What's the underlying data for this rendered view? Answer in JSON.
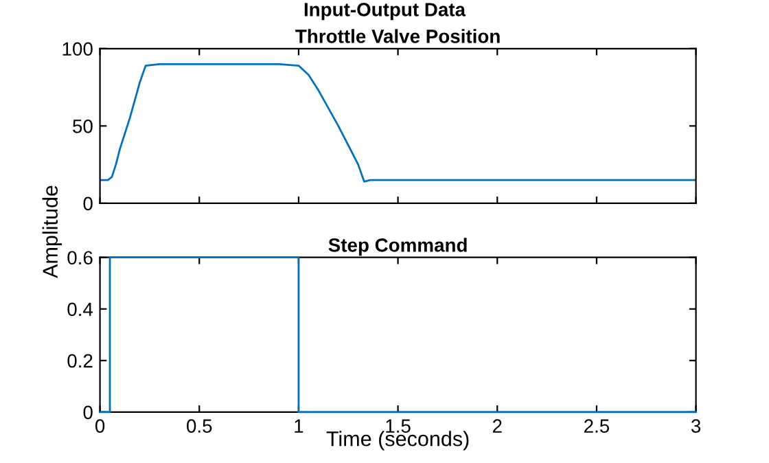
{
  "chart_data": [
    {
      "type": "line",
      "title": "Throttle Valve Position",
      "annotations": [
        "Input-Output Data"
      ],
      "ylabel": "Amplitude",
      "xlim": [
        0,
        3
      ],
      "xticks": [
        0,
        0.5,
        1,
        1.5,
        2,
        2.5,
        3
      ],
      "ylim": [
        0,
        100
      ],
      "yticks": [
        0,
        50,
        100
      ],
      "tick_labels": "y",
      "series": [
        {
          "color": "#0072bd",
          "x": [
            0,
            0.04,
            0.06,
            0.08,
            0.1,
            0.15,
            0.2,
            0.23,
            0.3,
            0.5,
            0.7,
            0.9,
            1.0,
            1.05,
            1.1,
            1.2,
            1.3,
            1.33,
            1.36,
            1.5,
            2,
            2.5,
            3
          ],
          "values": [
            15,
            15,
            17,
            25,
            35,
            55,
            78,
            89,
            90,
            90,
            90,
            90,
            89,
            83,
            73,
            50,
            25,
            14,
            15,
            15,
            15,
            15,
            15
          ]
        }
      ]
    },
    {
      "type": "step",
      "title": "Step Command",
      "xlabel": "Time (seconds)",
      "xlim": [
        0,
        3
      ],
      "xticks": [
        0,
        0.5,
        1,
        1.5,
        2,
        2.5,
        3
      ],
      "ylim": [
        0,
        0.6
      ],
      "yticks": [
        0,
        0.2,
        0.4,
        0.6
      ],
      "series": [
        {
          "color": "#0072bd",
          "x": [
            0,
            0.05,
            1,
            3
          ],
          "values": [
            0,
            0.6,
            0,
            0
          ]
        }
      ]
    }
  ]
}
